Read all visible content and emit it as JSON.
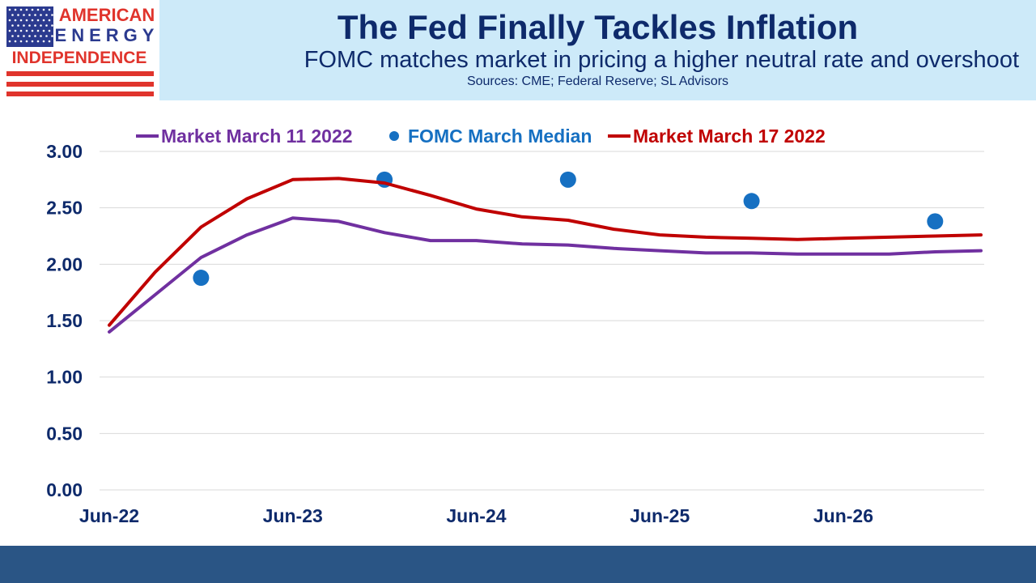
{
  "logo": {
    "line1": "AMERICAN",
    "line2": "ENERGY",
    "line3": "INDEPENDENCE",
    "flag_blue": "#2b3a8f",
    "stripe_red": "#e0342c"
  },
  "header": {
    "title": "The Fed Finally Tackles Inflation",
    "subtitle": "FOMC matches market in pricing a higher neutral rate and overshoot",
    "source": "Sources: CME; Federal Reserve; SL Advisors"
  },
  "colors": {
    "header_bg": "#cdeaf9",
    "title_text": "#0e2a6b",
    "footer_bg": "#2a5585",
    "gridline": "#d9d9d9"
  },
  "chart_data": {
    "type": "line",
    "title": "",
    "xlabel": "",
    "ylabel": "",
    "ylim": [
      0,
      3
    ],
    "yticks": [
      "0.00",
      "0.50",
      "1.00",
      "1.50",
      "2.00",
      "2.50",
      "3.00"
    ],
    "xtick_labels": [
      "Jun-22",
      "Jun-23",
      "Jun-24",
      "Jun-25",
      "Jun-26"
    ],
    "grid": true,
    "legend": "top",
    "x": [
      "2022-06",
      "2022-09",
      "2022-12",
      "2023-03",
      "2023-06",
      "2023-09",
      "2023-12",
      "2024-03",
      "2024-06",
      "2024-09",
      "2024-12",
      "2025-03",
      "2025-06",
      "2025-09",
      "2025-12",
      "2026-03",
      "2026-06",
      "2026-09",
      "2026-12",
      "2027-03"
    ],
    "series": [
      {
        "name": "Market March 11 2022",
        "type": "line",
        "color": "#7030a0",
        "values": [
          1.4,
          1.73,
          2.06,
          2.26,
          2.41,
          2.38,
          2.28,
          2.21,
          2.21,
          2.18,
          2.17,
          2.14,
          2.12,
          2.1,
          2.1,
          2.09,
          2.09,
          2.09,
          2.11,
          2.12
        ]
      },
      {
        "name": "FOMC March Median",
        "type": "scatter",
        "color": "#1670c2",
        "points": [
          {
            "x": "2022-12",
            "y": 1.88
          },
          {
            "x": "2023-12",
            "y": 2.75
          },
          {
            "x": "2024-12",
            "y": 2.75
          },
          {
            "x": "2025-12",
            "y": 2.56
          },
          {
            "x": "2026-12",
            "y": 2.38
          }
        ]
      },
      {
        "name": "Market March 17 2022",
        "type": "line",
        "color": "#c00000",
        "values": [
          1.46,
          1.93,
          2.33,
          2.58,
          2.75,
          2.76,
          2.72,
          2.61,
          2.49,
          2.42,
          2.39,
          2.31,
          2.26,
          2.24,
          2.23,
          2.22,
          2.23,
          2.24,
          2.25,
          2.26
        ]
      }
    ]
  }
}
